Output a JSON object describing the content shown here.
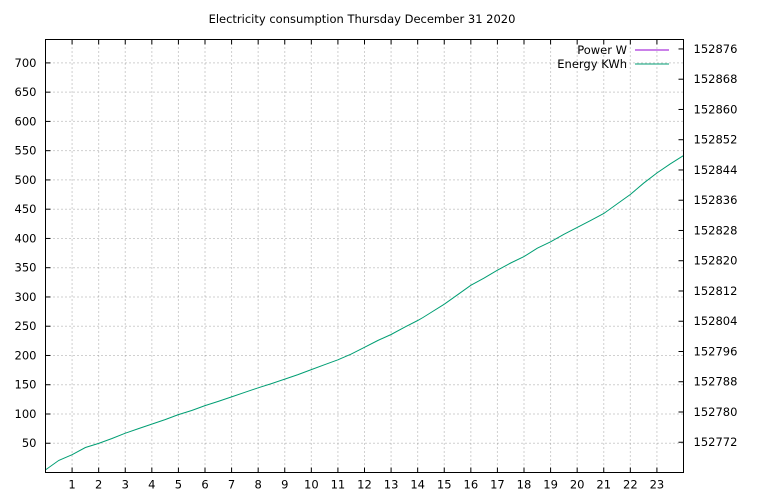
{
  "chart_data": {
    "type": "line",
    "title": "Electricity consumption Thursday December 31 2020",
    "xlabel": "",
    "ylabel": "",
    "y2label": "",
    "xlim": [
      0,
      24
    ],
    "ylim": [
      0,
      740
    ],
    "y2lim": [
      152764,
      152878.5
    ],
    "x_ticks": [
      "1",
      "2",
      "3",
      "4",
      "5",
      "6",
      "7",
      "8",
      "9",
      "10",
      "11",
      "12",
      "13",
      "14",
      "15",
      "16",
      "17",
      "18",
      "19",
      "20",
      "21",
      "22",
      "23"
    ],
    "y_ticks": [
      "50",
      "100",
      "150",
      "200",
      "250",
      "300",
      "350",
      "400",
      "450",
      "500",
      "550",
      "600",
      "650",
      "700"
    ],
    "y2_ticks": [
      "152772",
      "152780",
      "152788",
      "152796",
      "152804",
      "152812",
      "152820",
      "152828",
      "152836",
      "152844",
      "152852",
      "152860",
      "152868",
      "152876"
    ],
    "grid": true,
    "legend_position": "top-right",
    "series": [
      {
        "name": "Power W",
        "color": "#9400d3",
        "axis": "y",
        "x": [],
        "y": []
      },
      {
        "name": "Energy KWh",
        "color": "#009e73",
        "axis": "y2",
        "x": [
          0,
          0.5,
          1,
          1.5,
          2,
          2.5,
          3,
          3.5,
          4,
          4.5,
          5,
          5.5,
          6,
          6.5,
          7,
          7.5,
          8,
          8.5,
          9,
          9.5,
          10,
          10.5,
          11,
          11.5,
          12,
          12.5,
          13,
          13.5,
          14,
          14.2,
          14.5,
          15,
          15.5,
          16,
          16.5,
          17,
          17.5,
          18,
          18.5,
          19,
          19.5,
          20,
          20.5,
          21,
          21.5,
          22,
          22.5,
          23,
          23.5,
          24
        ],
        "y": [
          152764.7,
          152767.2,
          152768.7,
          152770.6,
          152771.7,
          152773.0,
          152774.4,
          152775.6,
          152776.8,
          152778.0,
          152779.3,
          152780.4,
          152781.7,
          152782.8,
          152784.0,
          152785.2,
          152786.4,
          152787.5,
          152788.7,
          152789.9,
          152791.2,
          152792.5,
          152793.8,
          152795.3,
          152797.1,
          152798.9,
          152800.5,
          152802.4,
          152804.2,
          152805.0,
          152806.3,
          152808.5,
          152811.0,
          152813.5,
          152815.4,
          152817.5,
          152819.4,
          152821.1,
          152823.3,
          152825.0,
          152827.0,
          152828.8,
          152830.6,
          152832.5,
          152835.0,
          152837.5,
          152840.5,
          152843.2,
          152845.6,
          152847.8
        ]
      }
    ]
  }
}
